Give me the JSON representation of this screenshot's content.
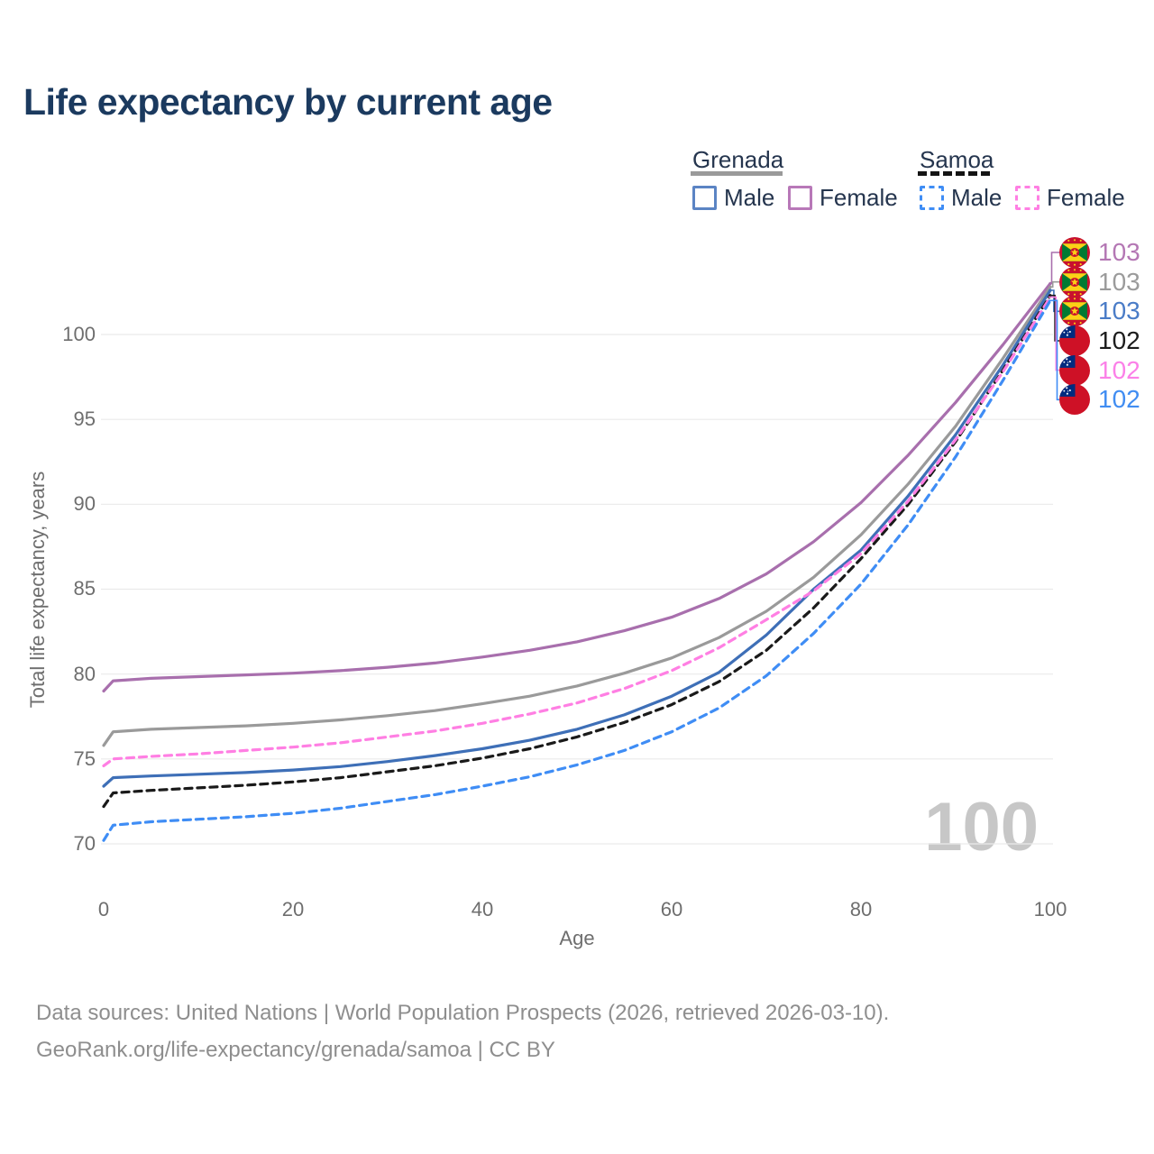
{
  "title": "Life expectancy by current age",
  "legend": {
    "groups": [
      {
        "country": "Grenada",
        "underline_style": "solid",
        "underline_color": "#9a9a9a",
        "items": [
          {
            "label": "Male",
            "color": "#5b84c4",
            "dashed": false
          },
          {
            "label": "Female",
            "color": "#b878b8",
            "dashed": false
          }
        ]
      },
      {
        "country": "Samoa",
        "underline_style": "dashed",
        "underline_color": "#141414",
        "items": [
          {
            "label": "Male",
            "color": "#3f8df5",
            "dashed": true
          },
          {
            "label": "Female",
            "color": "#ff7fe3",
            "dashed": true
          }
        ]
      }
    ]
  },
  "end_labels": [
    {
      "flag": "grenada-flag",
      "value": "103",
      "color": "#b477b4"
    },
    {
      "flag": "grenada-flag",
      "value": "103",
      "color": "#9b9b9b"
    },
    {
      "flag": "grenada-flag",
      "value": "103",
      "color": "#4a7cc7"
    },
    {
      "flag": "samoa-flag",
      "value": "102",
      "color": "#1c1c1c"
    },
    {
      "flag": "samoa-flag",
      "value": "102",
      "color": "#fb80e8"
    },
    {
      "flag": "samoa-flag",
      "value": "102",
      "color": "#418df2"
    }
  ],
  "watermark": "100",
  "footer": {
    "line1": "Data sources: United Nations | World Population Prospects (2026, retrieved 2026-03-10).",
    "line2": "GeoRank.org/life-expectancy/grenada/samoa | CC BY"
  },
  "chart_data": {
    "type": "line",
    "title": "Life expectancy by current age",
    "xlabel": "Age",
    "ylabel": "Total life expectancy, years",
    "x_ticks": [
      0,
      20,
      40,
      60,
      80,
      100
    ],
    "y_ticks": [
      70,
      75,
      80,
      85,
      90,
      95,
      100
    ],
    "xlim": [
      0,
      100
    ],
    "ylim": [
      69,
      103.5
    ],
    "grid": "horizontal",
    "legend_position": "top-right",
    "x": [
      0,
      1,
      5,
      10,
      15,
      20,
      25,
      30,
      35,
      40,
      45,
      50,
      55,
      60,
      65,
      70,
      75,
      80,
      85,
      90,
      95,
      100
    ],
    "series": [
      {
        "name": "Grenada Female",
        "color": "#a86fad",
        "dashed": false,
        "end_label": "103",
        "values": [
          79.0,
          79.6,
          79.75,
          79.85,
          79.95,
          80.05,
          80.2,
          80.4,
          80.65,
          81.0,
          81.4,
          81.9,
          82.55,
          83.35,
          84.45,
          85.9,
          87.8,
          90.1,
          92.9,
          96.0,
          99.4,
          103.0
        ]
      },
      {
        "name": "Grenada (both sexes)",
        "color": "#9a9a9a",
        "dashed": false,
        "end_label": "103",
        "values": [
          75.8,
          76.6,
          76.75,
          76.85,
          76.95,
          77.1,
          77.3,
          77.55,
          77.85,
          78.25,
          78.7,
          79.3,
          80.05,
          80.95,
          82.15,
          83.7,
          85.7,
          88.2,
          91.2,
          94.6,
          98.6,
          102.8
        ]
      },
      {
        "name": "Grenada Male",
        "color": "#3e6fb7",
        "dashed": false,
        "end_label": "103",
        "values": [
          73.4,
          73.9,
          74.0,
          74.1,
          74.2,
          74.35,
          74.55,
          74.85,
          75.2,
          75.6,
          76.1,
          76.75,
          77.6,
          78.7,
          80.1,
          82.3,
          85.0,
          87.3,
          90.5,
          94.1,
          98.2,
          102.6
        ]
      },
      {
        "name": "Samoa (both sexes)",
        "color": "#1a1a1a",
        "dashed": true,
        "end_label": "102",
        "values": [
          72.2,
          73.0,
          73.15,
          73.3,
          73.45,
          73.65,
          73.9,
          74.25,
          74.6,
          75.05,
          75.6,
          76.3,
          77.15,
          78.2,
          79.55,
          81.4,
          83.9,
          86.8,
          90.0,
          93.7,
          97.9,
          102.3
        ]
      },
      {
        "name": "Samoa Female",
        "color": "#ff7fe3",
        "dashed": true,
        "end_label": "102",
        "values": [
          74.6,
          75.0,
          75.15,
          75.3,
          75.5,
          75.7,
          75.95,
          76.3,
          76.65,
          77.1,
          77.65,
          78.3,
          79.15,
          80.2,
          81.55,
          83.2,
          84.9,
          87.1,
          90.2,
          93.8,
          97.8,
          102.2
        ]
      },
      {
        "name": "Samoa Male",
        "color": "#3f8df5",
        "dashed": true,
        "end_label": "102",
        "values": [
          70.2,
          71.1,
          71.3,
          71.45,
          71.6,
          71.8,
          72.1,
          72.5,
          72.9,
          73.4,
          73.95,
          74.65,
          75.5,
          76.6,
          78.0,
          79.9,
          82.4,
          85.3,
          88.8,
          92.8,
          97.3,
          102.0
        ]
      }
    ]
  }
}
